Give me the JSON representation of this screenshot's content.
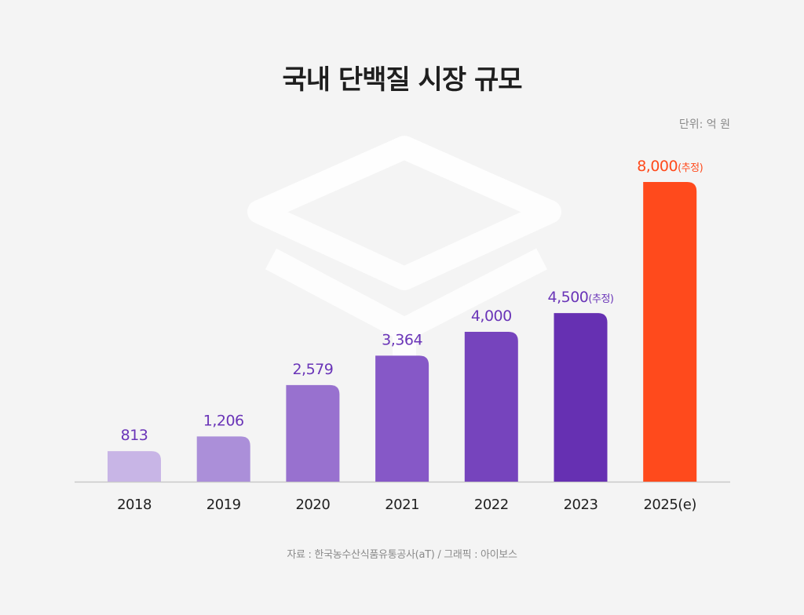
{
  "header": {
    "title": "국내 단백질 시장 규모",
    "unit_label": "단위: 억 원"
  },
  "footer": {
    "source": "자료 : 한국농수산식품유통공사(aT) / 그래픽 : 아이보스"
  },
  "colors": {
    "bars": [
      "#c8b5e6",
      "#ab8fd9",
      "#9871cf",
      "#8658c7",
      "#7644bd",
      "#6630b2",
      "#ff4a1c"
    ],
    "value_label": "#6a35b8",
    "highlight_label": "#ff4a1c",
    "axis": "#c8c8c8"
  },
  "chart_data": {
    "type": "bar",
    "title": "국내 단백질 시장 규모",
    "ylabel": "단위: 억 원",
    "xlabel": "",
    "ylim": [
      0,
      8000
    ],
    "grid": false,
    "categories": [
      "2018",
      "2019",
      "2020",
      "2021",
      "2022",
      "2023",
      "2025(e)"
    ],
    "values": [
      813,
      1206,
      2579,
      3364,
      4000,
      4500,
      8000
    ],
    "value_labels": [
      "813",
      "1,206",
      "2,579",
      "3,364",
      "4,000",
      "4,500",
      "8,000"
    ],
    "value_notes": [
      "",
      "",
      "",
      "",
      "",
      "(추정)",
      "(추정)"
    ]
  }
}
